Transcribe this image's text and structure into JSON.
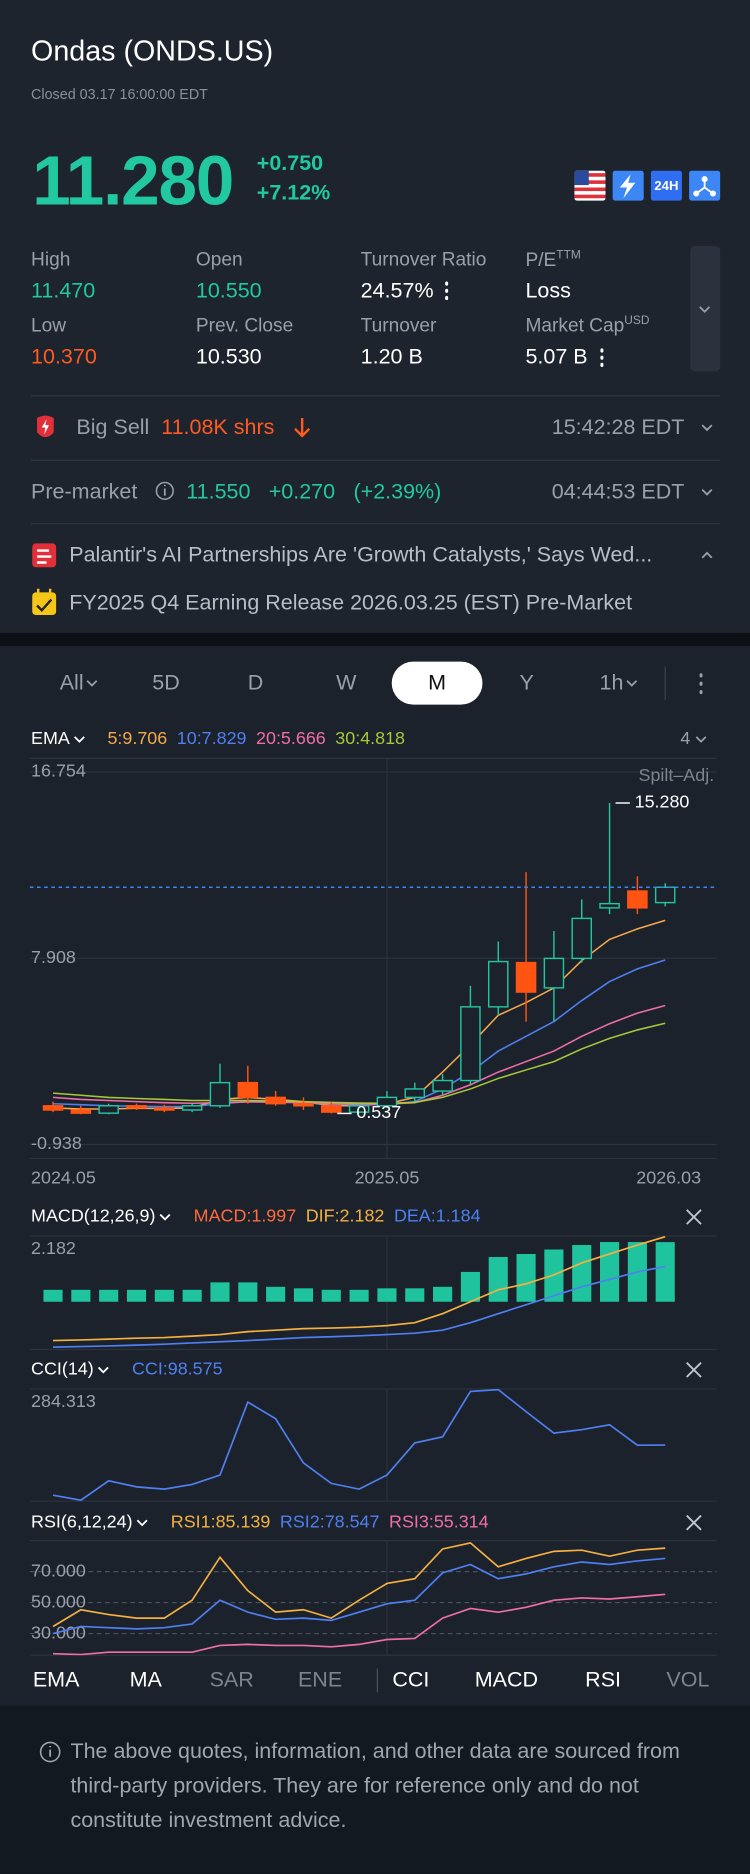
{
  "header": {
    "title": "Ondas (ONDS.US)",
    "status": "Closed 03.17 16:00:00 EDT"
  },
  "quote": {
    "price": "11.280",
    "change": "+0.750",
    "change_pct": "+7.12%",
    "badge_24h": "24H"
  },
  "stats": [
    {
      "label": "High",
      "value": "11.470"
    },
    {
      "label": "Open",
      "value": "10.550"
    },
    {
      "label": "Turnover Ratio",
      "value": "24.57%"
    },
    {
      "label": "P/E",
      "sup": "TTM",
      "value": "Loss"
    },
    {
      "label": "Low",
      "value": "10.370"
    },
    {
      "label": "Prev. Close",
      "value": "10.530"
    },
    {
      "label": "Turnover",
      "value": "1.20 B"
    },
    {
      "label": "Market Cap",
      "sup": "USD",
      "value": "5.07 B"
    }
  ],
  "big_sell": {
    "label": "Big Sell",
    "value": "11.08K shrs",
    "time": "15:42:28 EDT"
  },
  "premarket": {
    "label": "Pre-market",
    "price": "11.550",
    "change": "+0.270",
    "change_pct": "(+2.39%)",
    "time": "04:44:53 EDT"
  },
  "news": [
    "Palantir's AI Partnerships Are 'Growth Catalysts,' Says Wed...",
    "FY2025 Q4 Earning Release 2026.03.25 (EST) Pre-Market"
  ],
  "periods": {
    "items": [
      "All",
      "5D",
      "D",
      "W",
      "M",
      "Y",
      "1h"
    ],
    "selected": 4
  },
  "chart_data": [
    {
      "type": "candlestick",
      "title": "EMA",
      "indicator_count": "4",
      "adjust_label": "Spilt–Adj.",
      "categories": [
        "2024.05",
        null,
        null,
        null,
        null,
        null,
        null,
        null,
        null,
        null,
        null,
        null,
        "2025.05",
        null,
        null,
        null,
        null,
        null,
        null,
        null,
        null,
        null,
        "2026.03"
      ],
      "open": [
        0.9,
        0.7,
        0.55,
        0.9,
        0.8,
        0.7,
        0.9,
        2.0,
        1.3,
        1.0,
        0.9,
        0.6,
        0.9,
        1.3,
        1.6,
        2.1,
        5.6,
        7.7,
        6.5,
        7.9,
        10.3,
        11.1,
        10.55
      ],
      "high": [
        1.1,
        0.9,
        1.0,
        1.0,
        0.95,
        1.0,
        2.9,
        2.8,
        1.6,
        1.3,
        1.1,
        1.0,
        1.6,
        2.0,
        2.4,
        6.6,
        8.7,
        12.0,
        9.2,
        10.7,
        15.28,
        11.8,
        11.47
      ],
      "low": [
        0.6,
        0.5,
        0.5,
        0.7,
        0.6,
        0.6,
        0.8,
        1.0,
        0.9,
        0.7,
        0.537,
        0.55,
        0.8,
        1.1,
        1.4,
        1.9,
        5.2,
        4.9,
        4.9,
        7.7,
        10.0,
        10.0,
        10.37
      ],
      "close": [
        0.7,
        0.55,
        0.9,
        0.8,
        0.7,
        0.9,
        2.0,
        1.3,
        1.0,
        0.9,
        0.6,
        0.9,
        1.3,
        1.7,
        2.1,
        5.6,
        7.75,
        6.3,
        7.9,
        9.8,
        10.5,
        10.3,
        11.28
      ],
      "up_color": "#23c4a0",
      "down_color": "#ff5412",
      "series": [
        {
          "name": "5:9.706",
          "color": "#f5a94a",
          "values": [
            0.8,
            0.75,
            0.75,
            0.78,
            0.77,
            0.8,
            1.2,
            1.3,
            1.2,
            1.1,
            0.9,
            0.9,
            1.0,
            1.3,
            2.5,
            3.8,
            5.2,
            5.8,
            6.5,
            7.8,
            8.8,
            9.3,
            9.706
          ]
        },
        {
          "name": "10:7.829",
          "color": "#4f7ff0",
          "values": [
            1.0,
            0.95,
            0.9,
            0.88,
            0.86,
            0.86,
            1.0,
            1.1,
            1.1,
            1.05,
            0.98,
            0.95,
            0.96,
            1.1,
            1.7,
            2.5,
            3.5,
            4.2,
            4.9,
            5.9,
            6.8,
            7.4,
            7.829
          ]
        },
        {
          "name": "20:5.666",
          "color": "#f06ea8",
          "values": [
            1.3,
            1.2,
            1.15,
            1.1,
            1.05,
            1.02,
            1.05,
            1.08,
            1.07,
            1.05,
            1.0,
            0.98,
            0.98,
            1.05,
            1.4,
            1.9,
            2.5,
            3.0,
            3.5,
            4.2,
            4.8,
            5.3,
            5.666
          ]
        },
        {
          "name": "30:4.818",
          "color": "#a6c83a",
          "values": [
            1.5,
            1.4,
            1.3,
            1.25,
            1.2,
            1.15,
            1.15,
            1.15,
            1.13,
            1.1,
            1.06,
            1.03,
            1.02,
            1.06,
            1.3,
            1.7,
            2.2,
            2.6,
            3.0,
            3.6,
            4.1,
            4.5,
            4.818
          ]
        }
      ],
      "reference_line": 11.28,
      "annotations": {
        "high": {
          "value": 15.28,
          "label": "15.280"
        },
        "low": {
          "value": 0.537,
          "label": "0.537"
        }
      },
      "ylim": [
        -1.6,
        17.4
      ],
      "yticks": [
        16.754,
        7.908,
        -0.938
      ],
      "grid": true
    },
    {
      "type": "bar",
      "title": "MACD(12,26,9)",
      "series": [
        {
          "name": "MACD:1.997",
          "kind": "bar",
          "color": "#ff6b3d",
          "bar_color": "#1fc49e",
          "values": [
            0.4,
            0.4,
            0.4,
            0.4,
            0.4,
            0.4,
            0.65,
            0.65,
            0.5,
            0.45,
            0.4,
            0.4,
            0.45,
            0.45,
            0.5,
            1.0,
            1.5,
            1.6,
            1.75,
            1.9,
            2.0,
            2.0,
            1.997
          ]
        },
        {
          "name": "DIF:2.182",
          "kind": "line",
          "color": "#f5b041",
          "values": [
            -1.3,
            -1.28,
            -1.25,
            -1.22,
            -1.2,
            -1.15,
            -1.1,
            -1.0,
            -0.95,
            -0.9,
            -0.88,
            -0.85,
            -0.8,
            -0.7,
            -0.4,
            0.0,
            0.4,
            0.6,
            0.9,
            1.3,
            1.6,
            1.9,
            2.182
          ]
        },
        {
          "name": "DEA:1.184",
          "kind": "line",
          "color": "#4f7ff0",
          "values": [
            -1.52,
            -1.5,
            -1.48,
            -1.45,
            -1.42,
            -1.38,
            -1.34,
            -1.3,
            -1.25,
            -1.2,
            -1.17,
            -1.14,
            -1.1,
            -1.05,
            -0.95,
            -0.7,
            -0.4,
            -0.1,
            0.2,
            0.5,
            0.75,
            1.0,
            1.184
          ]
        }
      ],
      "ylim": [
        -1.6,
        2.2
      ],
      "yticks": [
        2.182
      ],
      "grid": false
    },
    {
      "type": "line",
      "title": "CCI(14)",
      "series": [
        {
          "name": "CCI:98.575",
          "color": "#4f7ff0",
          "values": [
            -118,
            -140,
            -56,
            -82,
            -92,
            -72,
            -31,
            284,
            212,
            21,
            -67,
            -92,
            -31,
            108,
            134,
            330,
            338,
            243,
            150,
            165,
            186,
            98,
            98.575
          ]
        }
      ],
      "ylim": [
        -144,
        341
      ],
      "yticks": [
        284.313
      ],
      "grid": false
    },
    {
      "type": "line",
      "title": "RSI(6,12,24)",
      "series": [
        {
          "name": "RSI1:85.139",
          "color": "#f5b041",
          "values": [
            34.6,
            45.4,
            42.3,
            40,
            40,
            51.5,
            79.2,
            57.7,
            43.8,
            45.4,
            40,
            51.5,
            62.3,
            65.4,
            84.6,
            88.5,
            73.1,
            78.5,
            83.1,
            83.8,
            80,
            83.8,
            85.139
          ]
        },
        {
          "name": "RSI2:78.547",
          "color": "#4f7ff0",
          "values": [
            30,
            34.6,
            33.8,
            33,
            33.8,
            36.2,
            51.5,
            43.8,
            39.2,
            40,
            38.5,
            43.8,
            49.2,
            51.5,
            69.2,
            74.6,
            65.4,
            68.5,
            73.1,
            76.2,
            74.6,
            76.9,
            78.547
          ]
        },
        {
          "name": "RSI3:55.314",
          "color": "#f06ea8",
          "values": [
            17,
            16.5,
            18,
            18,
            18,
            18,
            22.3,
            23,
            22.3,
            22.3,
            21.5,
            23,
            26.2,
            26.9,
            40,
            46.2,
            43.8,
            46.9,
            51.5,
            53,
            52.3,
            53.8,
            55.314
          ]
        }
      ],
      "ylim": [
        16,
        90
      ],
      "yticks": [
        {
          "value": 70,
          "label": "70.000"
        },
        {
          "value": 50,
          "label": "50.000"
        },
        {
          "value": 30,
          "label": "30.000"
        }
      ],
      "grid": "dashed"
    }
  ],
  "indicator_tabs": {
    "items": [
      "EMA",
      "MA",
      "SAR",
      "ENE",
      "CCI",
      "MACD",
      "RSI",
      "VOL"
    ],
    "active": [
      true,
      true,
      false,
      false,
      true,
      true,
      true,
      false
    ]
  },
  "disclaimer": "The above quotes, information, and other data are sourced from third-party providers. They are for reference only and do not constitute investment advice."
}
